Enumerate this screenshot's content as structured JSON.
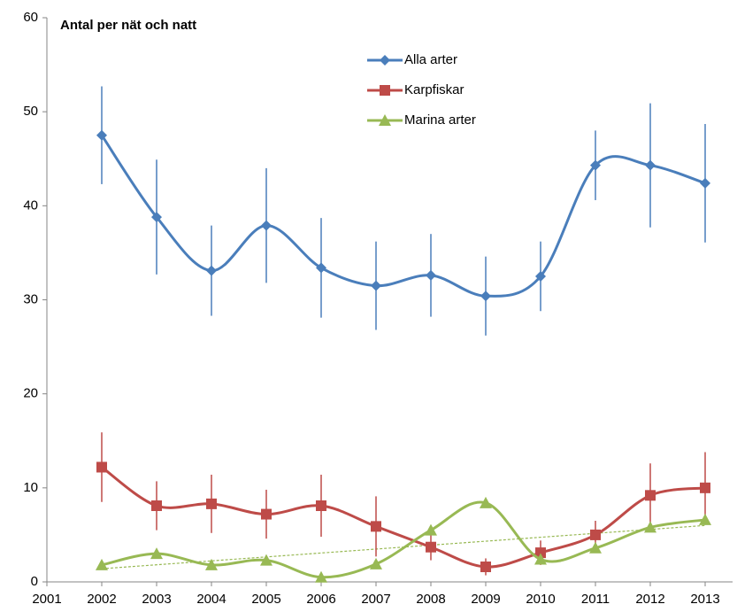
{
  "chart_data": {
    "type": "line",
    "y_label": "Antal per nät och natt",
    "x": [
      2002,
      2003,
      2004,
      2005,
      2006,
      2007,
      2008,
      2009,
      2010,
      2011,
      2012,
      2013
    ],
    "series": [
      {
        "name": "Alla arter",
        "color": "#4a7ebb",
        "marker": "diamond",
        "values": [
          47.5,
          38.8,
          33.1,
          37.9,
          33.4,
          31.5,
          32.6,
          30.4,
          32.5,
          44.3,
          44.3,
          42.4
        ],
        "errors": [
          5.2,
          6.1,
          4.8,
          6.1,
          5.3,
          4.7,
          4.4,
          4.2,
          3.7,
          3.7,
          6.6,
          6.3
        ]
      },
      {
        "name": "Karpfiskar",
        "color": "#be4b48",
        "marker": "square",
        "values": [
          12.2,
          8.1,
          8.3,
          7.2,
          8.1,
          5.9,
          3.7,
          1.6,
          3.1,
          5.0,
          9.2,
          10.0
        ],
        "errors": [
          3.7,
          2.6,
          3.1,
          2.6,
          3.3,
          3.2,
          1.4,
          0.9,
          1.3,
          1.5,
          3.4,
          3.8
        ]
      },
      {
        "name": "Marina arter",
        "color": "#98b954",
        "marker": "triangle",
        "values": [
          1.8,
          3.0,
          1.8,
          2.3,
          0.5,
          1.9,
          5.5,
          8.4,
          2.4,
          3.6,
          5.8,
          6.6
        ]
      }
    ],
    "trendline": {
      "color": "#98b954",
      "x": [
        2002,
        2013
      ],
      "values": [
        1.4,
        6.0
      ]
    },
    "xlim": [
      2001,
      2013.5
    ],
    "xticks": [
      2001,
      2002,
      2003,
      2004,
      2005,
      2006,
      2007,
      2008,
      2009,
      2010,
      2011,
      2012,
      2013
    ],
    "ylim": [
      0,
      60
    ],
    "yticks": [
      0,
      10,
      20,
      30,
      40,
      50,
      60
    ],
    "grid": false,
    "legend": "top"
  }
}
